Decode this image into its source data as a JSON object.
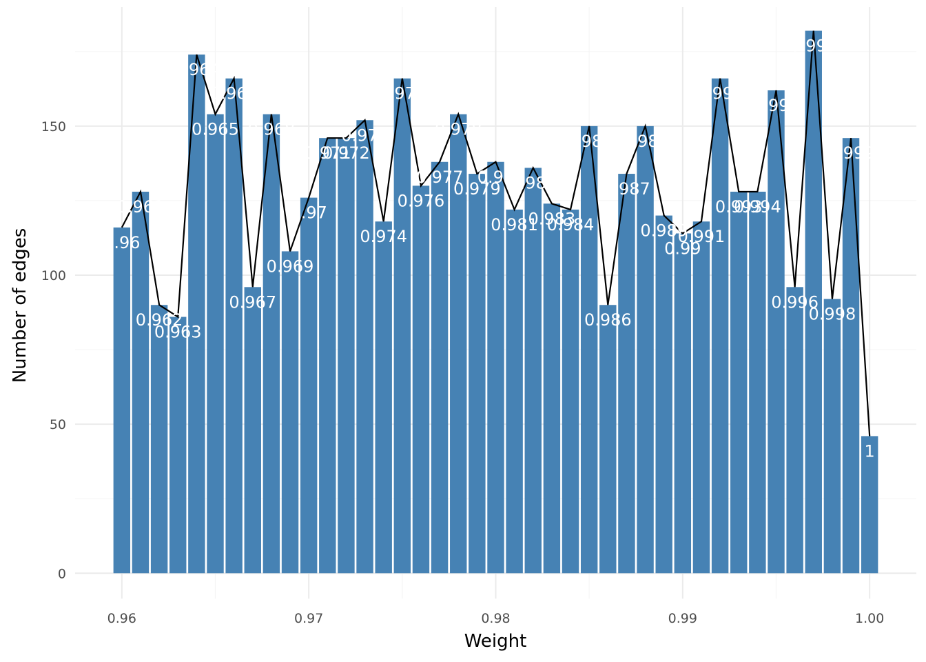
{
  "chart_data": {
    "type": "bar",
    "title": "",
    "xlabel": "Weight",
    "ylabel": "Number of edges",
    "xlim": [
      0.9575,
      1.0025
    ],
    "ylim": [
      -8.5,
      190
    ],
    "x_ticks": [
      0.96,
      0.97,
      0.98,
      0.99,
      1.0
    ],
    "x_tick_labels": [
      "0.96",
      "0.97",
      "0.98",
      "0.99",
      "1.00"
    ],
    "y_ticks": [
      0,
      50,
      100,
      150
    ],
    "y_tick_labels": [
      "0",
      "50",
      "100",
      "150"
    ],
    "grid": true,
    "legend": "none",
    "bar_width": 0.0009,
    "overlay_line": true,
    "x": [
      0.96,
      0.961,
      0.962,
      0.963,
      0.964,
      0.965,
      0.966,
      0.967,
      0.968,
      0.969,
      0.97,
      0.971,
      0.972,
      0.973,
      0.974,
      0.975,
      0.976,
      0.977,
      0.978,
      0.979,
      0.98,
      0.981,
      0.982,
      0.983,
      0.984,
      0.985,
      0.986,
      0.987,
      0.988,
      0.989,
      0.99,
      0.991,
      0.992,
      0.993,
      0.994,
      0.995,
      0.996,
      0.997,
      0.998,
      0.999,
      1.0
    ],
    "values": [
      116,
      128,
      90,
      86,
      174,
      154,
      166,
      96,
      154,
      108,
      126,
      146,
      146,
      152,
      118,
      166,
      130,
      138,
      154,
      134,
      138,
      122,
      136,
      124,
      122,
      150,
      90,
      134,
      150,
      120,
      114,
      118,
      166,
      128,
      128,
      162,
      96,
      182,
      92,
      146,
      46
    ],
    "labels": [
      "0.96",
      "0.961",
      "0.962",
      "0.963",
      "0.964",
      "0.965",
      "0.966",
      "0.967",
      "0.968",
      "0.969",
      "0.97",
      "0.971",
      "0.972",
      "0.973",
      "0.974",
      "0.975",
      "0.976",
      "0.977",
      "0.978",
      "0.979",
      "0.98",
      "0.981",
      "0.982",
      "0.983",
      "0.984",
      "0.985",
      "0.986",
      "0.987",
      "0.988",
      "0.989",
      "0.99",
      "0.991",
      "0.992",
      "0.993",
      "0.994",
      "0.995",
      "0.996",
      "0.997",
      "0.998",
      "0.999",
      "1"
    ],
    "colors": {
      "bar": "#4682B4",
      "line": "#000000",
      "grid_major": "#EBEBEB",
      "grid_minor": "#F5F5F5",
      "label": "#FFFFFF"
    }
  }
}
